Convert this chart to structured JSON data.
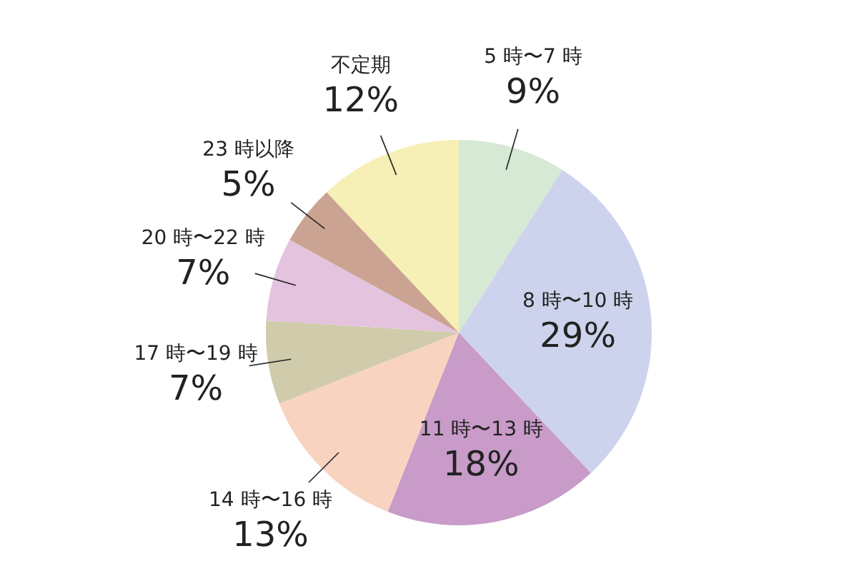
{
  "chart_data": {
    "type": "pie",
    "categories": [
      "5 時〜7 時",
      "8 時〜10 時",
      "11 時〜13 時",
      "14 時〜16 時",
      "17 時〜19 時",
      "20 時〜22 時",
      "23 時以降",
      "不定期"
    ],
    "values": [
      9,
      29,
      18,
      13,
      7,
      7,
      5,
      12
    ],
    "colors": [
      "#d5e9d5",
      "#cdd3ec",
      "#c89bc8",
      "#f8d3c0",
      "#d0cbab",
      "#e4c3df",
      "#cba392",
      "#f6efb6"
    ],
    "value_labels": [
      "9%",
      "29%",
      "18%",
      "13%",
      "7%",
      "7%",
      "5%",
      "12%"
    ]
  }
}
